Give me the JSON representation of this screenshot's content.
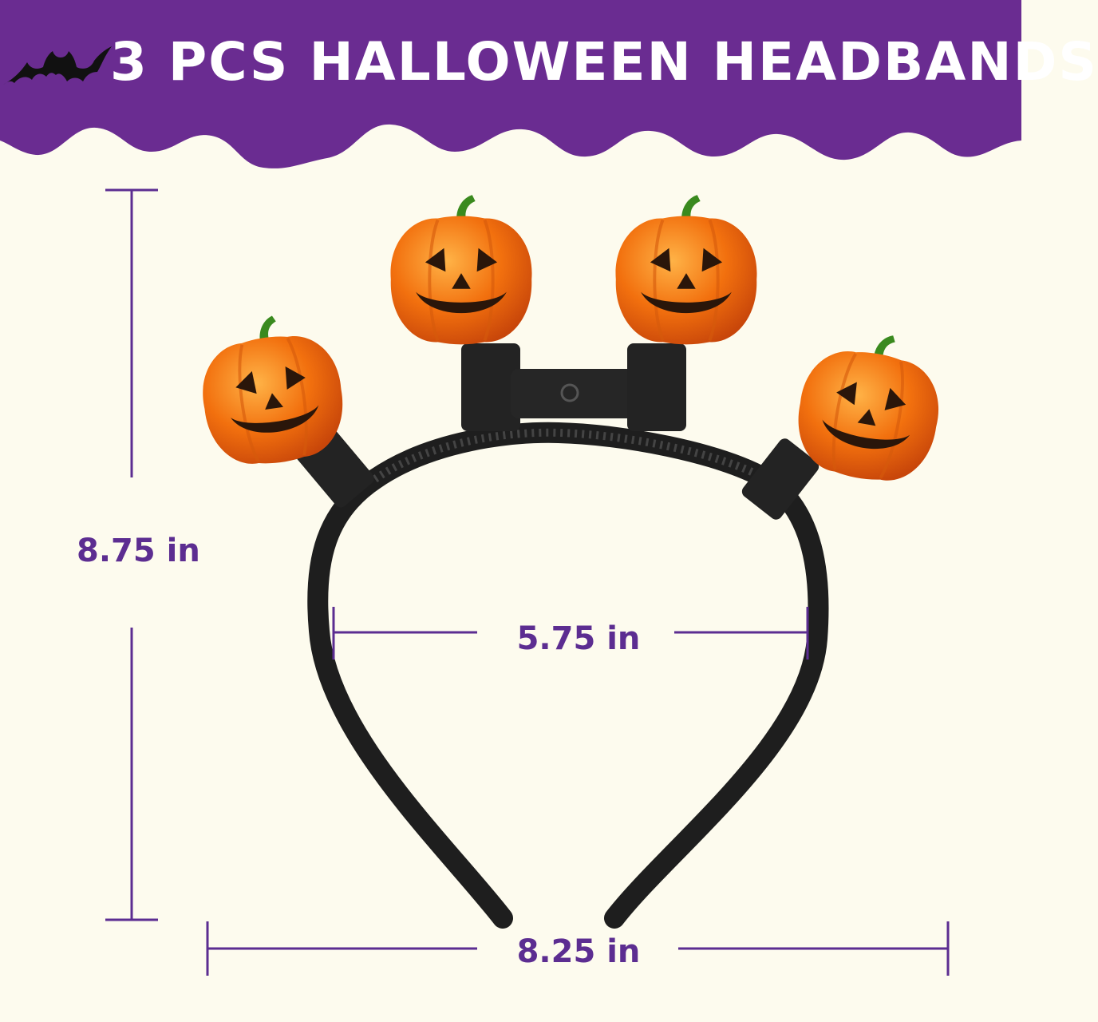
{
  "header": {
    "title": "3 PCS HALLOWEEN HEADBANDS",
    "banner_color": "#6A2C91",
    "icon": "bat-icon"
  },
  "colors": {
    "background": "#FDFBEE",
    "accent": "#5C2D91",
    "pumpkin": "#F2700E",
    "band": "#1E1E1E"
  },
  "product": {
    "pumpkin_count": 4,
    "icon": "pumpkin-icon"
  },
  "dimensions": {
    "height_label": "8.75 in",
    "inner_width_label": "5.75 in",
    "outer_width_label": "8.25 in"
  }
}
